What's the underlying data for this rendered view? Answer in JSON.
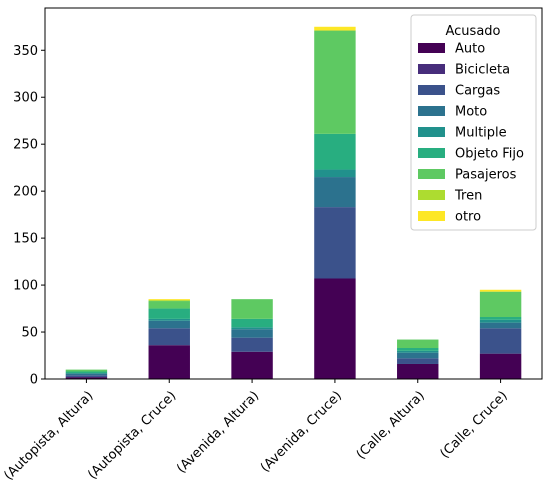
{
  "chart_data": {
    "type": "bar",
    "stacked": true,
    "categories": [
      "(Autopista, Altura)",
      "(Autopista, Cruce)",
      "(Avenida, Altura)",
      "(Avenida, Cruce)",
      "(Calle, Altura)",
      "(Calle, Cruce)"
    ],
    "ylim": [
      0,
      395
    ],
    "yticks": [
      0,
      50,
      100,
      150,
      200,
      250,
      300,
      350
    ],
    "legend": {
      "title": "Acusado",
      "position": "top-right"
    },
    "series": [
      {
        "name": "Auto",
        "color": "#440154",
        "values": [
          2,
          36,
          29,
          107,
          16,
          27
        ]
      },
      {
        "name": "Bicicleta",
        "color": "#472d7b",
        "values": [
          0,
          0,
          0,
          0,
          0,
          0
        ]
      },
      {
        "name": "Cargas",
        "color": "#3b528b",
        "values": [
          2,
          18,
          15,
          76,
          6,
          27
        ]
      },
      {
        "name": "Moto",
        "color": "#2c728e",
        "values": [
          2,
          8,
          9,
          32,
          6,
          6
        ]
      },
      {
        "name": "Multiple",
        "color": "#21918c",
        "values": [
          0,
          2,
          2,
          8,
          2,
          3
        ]
      },
      {
        "name": "Objeto Fijo",
        "color": "#28ae80",
        "values": [
          2,
          11,
          9,
          38,
          3,
          3
        ]
      },
      {
        "name": "Pasajeros",
        "color": "#5ec962",
        "values": [
          2,
          8,
          21,
          110,
          9,
          27
        ]
      },
      {
        "name": "Tren",
        "color": "#addc30",
        "values": [
          0,
          1,
          0,
          0,
          0,
          0
        ]
      },
      {
        "name": "otro",
        "color": "#fde725",
        "values": [
          0,
          1,
          0,
          4,
          0,
          2
        ]
      }
    ]
  }
}
